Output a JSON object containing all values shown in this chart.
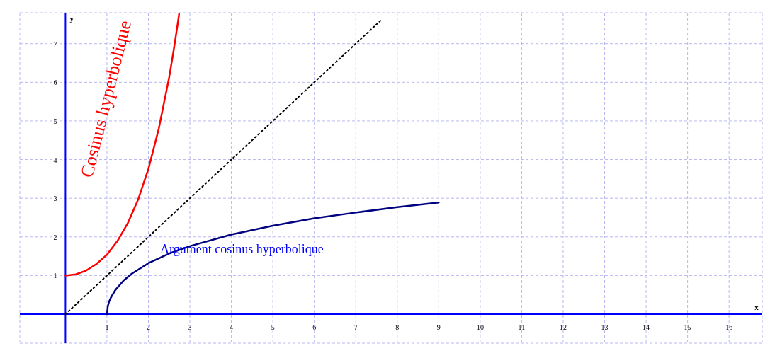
{
  "chart_data": {
    "type": "line",
    "xlabel": "x",
    "ylabel": "y",
    "xlim": [
      -1.1,
      16.8
    ],
    "ylim": [
      -0.75,
      7.8
    ],
    "xticks": [
      1,
      2,
      3,
      4,
      5,
      6,
      7,
      8,
      9,
      10,
      11,
      12,
      13,
      14,
      15,
      16
    ],
    "yticks": [
      1,
      2,
      3,
      4,
      5,
      6,
      7
    ],
    "grid": true,
    "marker": "none",
    "series": [
      {
        "color": "#ff0000",
        "line_style": "solid",
        "x": [
          0,
          0.25,
          0.5,
          0.75,
          1,
          1.25,
          1.5,
          1.75,
          2,
          2.25,
          2.5,
          2.6,
          2.7,
          2.74
        ],
        "values": [
          1,
          1.03,
          1.13,
          1.3,
          1.54,
          1.89,
          2.35,
          2.96,
          3.76,
          4.8,
          6.13,
          6.77,
          7.47,
          7.77
        ]
      },
      {
        "color": "#000000",
        "line_style": "dotted",
        "x": [
          0,
          7.6
        ],
        "values": [
          0,
          7.6
        ]
      },
      {
        "color": "#000080",
        "line_style": "solid",
        "x": [
          1,
          1.02,
          1.05,
          1.1,
          1.2,
          1.4,
          1.6,
          2,
          2.5,
          3,
          4,
          5,
          6,
          7,
          8,
          9
        ],
        "values": [
          0,
          0.2,
          0.32,
          0.44,
          0.62,
          0.87,
          1.05,
          1.32,
          1.57,
          1.76,
          2.06,
          2.29,
          2.48,
          2.63,
          2.77,
          2.89
        ]
      }
    ],
    "annotations": [
      "Cosinus hyperbolique",
      "Argument cosinus hyperbolique"
    ]
  }
}
